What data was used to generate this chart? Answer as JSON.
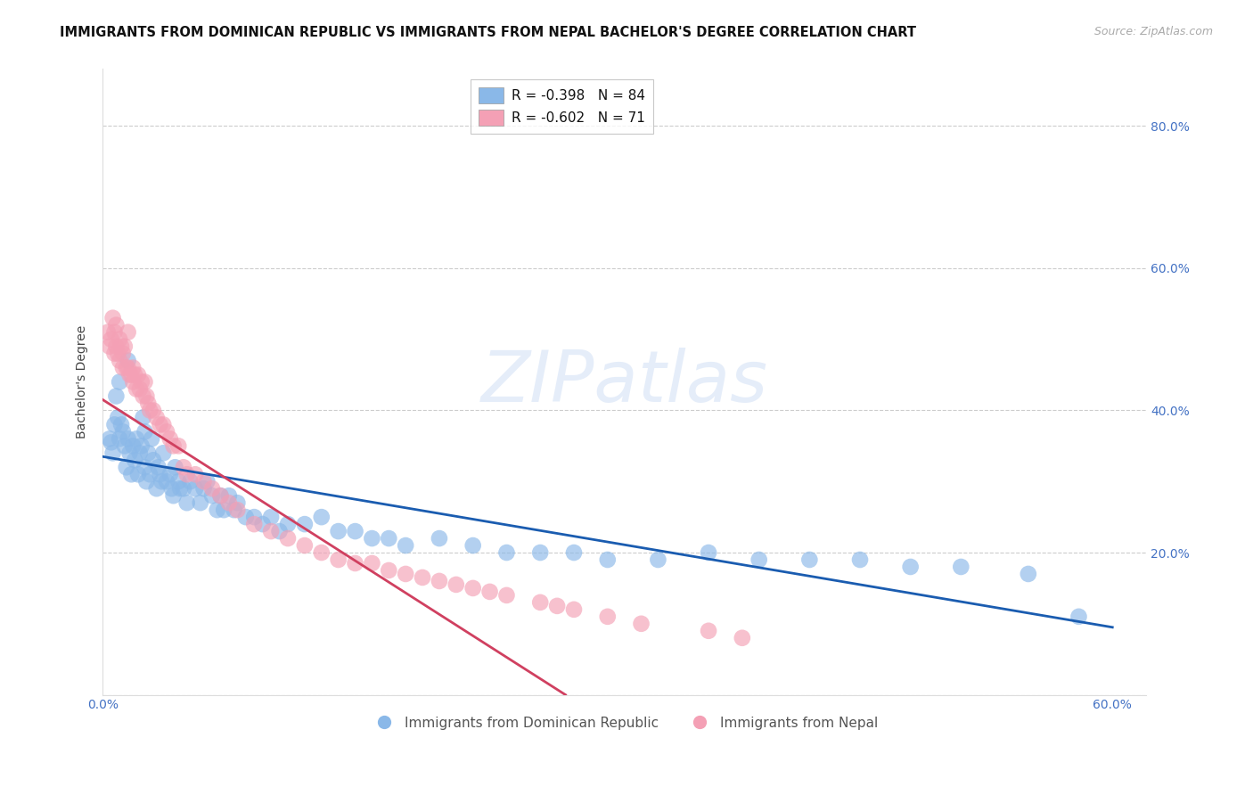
{
  "title": "IMMIGRANTS FROM DOMINICAN REPUBLIC VS IMMIGRANTS FROM NEPAL BACHELOR'S DEGREE CORRELATION CHART",
  "source": "Source: ZipAtlas.com",
  "ylabel": "Bachelor's Degree",
  "xmin": 0.0,
  "xmax": 0.62,
  "ymin": 0.0,
  "ymax": 0.88,
  "blue_R": -0.398,
  "blue_N": 84,
  "pink_R": -0.602,
  "pink_N": 71,
  "blue_color": "#8ab8e8",
  "pink_color": "#f4a0b5",
  "blue_line_color": "#1a5cb0",
  "pink_line_color": "#d04060",
  "watermark_zip": "ZIP",
  "watermark_atlas": "atlas",
  "legend_label_blue": "Immigrants from Dominican Republic",
  "legend_label_pink": "Immigrants from Nepal",
  "blue_scatter_x": [
    0.004,
    0.005,
    0.006,
    0.007,
    0.008,
    0.009,
    0.01,
    0.01,
    0.011,
    0.012,
    0.013,
    0.014,
    0.015,
    0.015,
    0.016,
    0.017,
    0.018,
    0.019,
    0.02,
    0.021,
    0.022,
    0.023,
    0.024,
    0.025,
    0.025,
    0.026,
    0.027,
    0.028,
    0.029,
    0.03,
    0.032,
    0.033,
    0.034,
    0.035,
    0.036,
    0.038,
    0.04,
    0.041,
    0.042,
    0.043,
    0.045,
    0.046,
    0.048,
    0.05,
    0.052,
    0.055,
    0.058,
    0.06,
    0.062,
    0.065,
    0.068,
    0.07,
    0.072,
    0.075,
    0.078,
    0.08,
    0.085,
    0.09,
    0.095,
    0.1,
    0.105,
    0.11,
    0.12,
    0.13,
    0.14,
    0.15,
    0.16,
    0.17,
    0.18,
    0.2,
    0.22,
    0.24,
    0.26,
    0.28,
    0.3,
    0.33,
    0.36,
    0.39,
    0.42,
    0.45,
    0.48,
    0.51,
    0.55,
    0.58
  ],
  "blue_scatter_y": [
    0.36,
    0.355,
    0.34,
    0.38,
    0.42,
    0.39,
    0.36,
    0.44,
    0.38,
    0.37,
    0.35,
    0.32,
    0.36,
    0.47,
    0.34,
    0.31,
    0.35,
    0.33,
    0.36,
    0.31,
    0.34,
    0.35,
    0.39,
    0.37,
    0.32,
    0.3,
    0.34,
    0.31,
    0.36,
    0.33,
    0.29,
    0.32,
    0.31,
    0.3,
    0.34,
    0.3,
    0.31,
    0.29,
    0.28,
    0.32,
    0.3,
    0.29,
    0.29,
    0.27,
    0.3,
    0.29,
    0.27,
    0.29,
    0.3,
    0.28,
    0.26,
    0.28,
    0.26,
    0.28,
    0.26,
    0.27,
    0.25,
    0.25,
    0.24,
    0.25,
    0.23,
    0.24,
    0.24,
    0.25,
    0.23,
    0.23,
    0.22,
    0.22,
    0.21,
    0.22,
    0.21,
    0.2,
    0.2,
    0.2,
    0.19,
    0.19,
    0.2,
    0.19,
    0.19,
    0.19,
    0.18,
    0.18,
    0.17,
    0.11
  ],
  "pink_scatter_x": [
    0.003,
    0.004,
    0.005,
    0.006,
    0.007,
    0.007,
    0.008,
    0.008,
    0.009,
    0.01,
    0.01,
    0.011,
    0.012,
    0.012,
    0.013,
    0.014,
    0.015,
    0.015,
    0.016,
    0.017,
    0.018,
    0.018,
    0.019,
    0.02,
    0.021,
    0.022,
    0.023,
    0.024,
    0.025,
    0.026,
    0.027,
    0.028,
    0.03,
    0.032,
    0.034,
    0.036,
    0.038,
    0.04,
    0.042,
    0.045,
    0.048,
    0.05,
    0.055,
    0.06,
    0.065,
    0.07,
    0.075,
    0.08,
    0.09,
    0.1,
    0.11,
    0.12,
    0.13,
    0.14,
    0.15,
    0.16,
    0.17,
    0.18,
    0.19,
    0.2,
    0.21,
    0.22,
    0.23,
    0.24,
    0.26,
    0.27,
    0.28,
    0.3,
    0.32,
    0.36,
    0.38
  ],
  "pink_scatter_y": [
    0.51,
    0.49,
    0.5,
    0.53,
    0.51,
    0.48,
    0.49,
    0.52,
    0.48,
    0.5,
    0.47,
    0.49,
    0.46,
    0.48,
    0.49,
    0.46,
    0.46,
    0.51,
    0.45,
    0.45,
    0.46,
    0.44,
    0.45,
    0.43,
    0.45,
    0.43,
    0.44,
    0.42,
    0.44,
    0.42,
    0.41,
    0.4,
    0.4,
    0.39,
    0.38,
    0.38,
    0.37,
    0.36,
    0.35,
    0.35,
    0.32,
    0.31,
    0.31,
    0.3,
    0.29,
    0.28,
    0.27,
    0.26,
    0.24,
    0.23,
    0.22,
    0.21,
    0.2,
    0.19,
    0.185,
    0.185,
    0.175,
    0.17,
    0.165,
    0.16,
    0.155,
    0.15,
    0.145,
    0.14,
    0.13,
    0.125,
    0.12,
    0.11,
    0.1,
    0.09,
    0.08
  ],
  "blue_line_x0": 0.0,
  "blue_line_x1": 0.6,
  "blue_line_y0": 0.335,
  "blue_line_y1": 0.095,
  "pink_line_x0": 0.0,
  "pink_line_x1": 0.275,
  "pink_line_y0": 0.415,
  "pink_line_y1": 0.0,
  "grid_color": "#cccccc",
  "background_color": "#ffffff",
  "title_fontsize": 10.5,
  "tick_fontsize": 10,
  "source_fontsize": 9,
  "ylabel_fontsize": 10,
  "legend_fontsize": 11
}
